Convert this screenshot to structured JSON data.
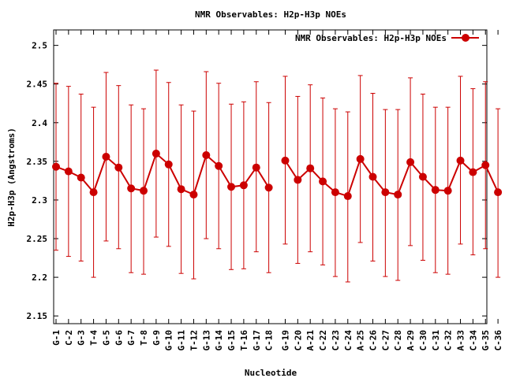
{
  "chart_data": {
    "type": "line",
    "title": "NMR Observables: H2p-H3p NOEs",
    "xlabel": "Nucleotide",
    "ylabel": "H2p-H3p (Angstroms)",
    "ylim": [
      2.14,
      2.52
    ],
    "yticks": [
      "2.15",
      "2.2",
      "2.25",
      "2.3",
      "2.35",
      "2.4",
      "2.45",
      "2.5"
    ],
    "grid": false,
    "legend_position": "top-right",
    "categories": [
      "G-1",
      "C-2",
      "G-3",
      "T-4",
      "G-5",
      "G-6",
      "G-7",
      "T-8",
      "G-9",
      "G-10",
      "G-11",
      "T-12",
      "G-13",
      "G-14",
      "G-15",
      "T-16",
      "G-17",
      "C-18",
      "G-19",
      "C-20",
      "A-21",
      "C-22",
      "C-23",
      "C-24",
      "A-25",
      "C-26",
      "C-27",
      "C-28",
      "A-29",
      "C-30",
      "C-31",
      "C-32",
      "A-33",
      "C-34",
      "G-35",
      "C-36"
    ],
    "series": [
      {
        "name": "NMR Observables: H2p-H3p NOEs",
        "color": "#cc0000",
        "segments": [
          [
            0,
            17
          ],
          [
            18,
            35
          ]
        ],
        "values": [
          2.343,
          2.337,
          2.329,
          2.31,
          2.356,
          2.342,
          2.315,
          2.312,
          2.36,
          2.346,
          2.314,
          2.307,
          2.358,
          2.344,
          2.317,
          2.319,
          2.342,
          2.316,
          2.351,
          2.326,
          2.341,
          2.324,
          2.31,
          2.305,
          2.353,
          2.33,
          2.31,
          2.307,
          2.349,
          2.33,
          2.313,
          2.312,
          2.351,
          2.336,
          2.345,
          2.31
        ],
        "err_low": [
          2.235,
          2.227,
          2.221,
          2.2,
          2.247,
          2.237,
          2.206,
          2.204,
          2.252,
          2.24,
          2.205,
          2.198,
          2.25,
          2.237,
          2.21,
          2.211,
          2.233,
          2.206,
          2.243,
          2.218,
          2.233,
          2.216,
          2.201,
          2.194,
          2.245,
          2.221,
          2.201,
          2.196,
          2.241,
          2.222,
          2.206,
          2.204,
          2.243,
          2.229,
          2.237,
          2.2
        ],
        "err_high": [
          2.451,
          2.447,
          2.437,
          2.42,
          2.465,
          2.448,
          2.423,
          2.418,
          2.468,
          2.452,
          2.423,
          2.415,
          2.466,
          2.451,
          2.424,
          2.427,
          2.453,
          2.426,
          2.46,
          2.434,
          2.449,
          2.432,
          2.418,
          2.414,
          2.461,
          2.438,
          2.417,
          2.417,
          2.458,
          2.437,
          2.42,
          2.42,
          2.46,
          2.444,
          2.453,
          2.418
        ]
      }
    ]
  }
}
